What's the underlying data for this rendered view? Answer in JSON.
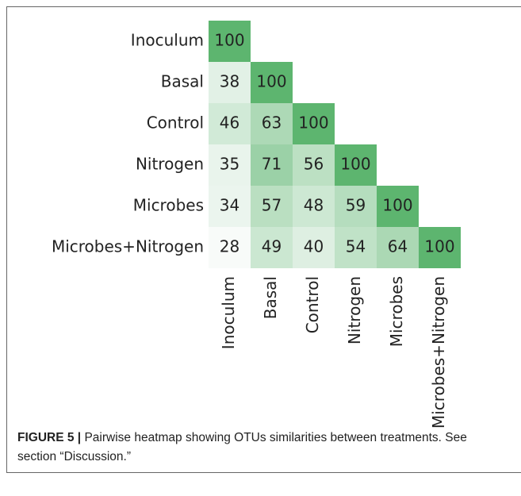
{
  "chart_data": {
    "type": "heatmap",
    "rows": [
      "Inoculum",
      "Basal",
      "Control",
      "Nitrogen",
      "Microbes",
      "Microbes+Nitrogen"
    ],
    "columns": [
      "Inoculum",
      "Basal",
      "Control",
      "Nitrogen",
      "Microbes",
      "Microbes+Nitrogen"
    ],
    "values": [
      [
        100,
        null,
        null,
        null,
        null,
        null
      ],
      [
        38,
        100,
        null,
        null,
        null,
        null
      ],
      [
        46,
        63,
        100,
        null,
        null,
        null
      ],
      [
        35,
        71,
        56,
        100,
        null,
        null
      ],
      [
        34,
        57,
        48,
        59,
        100,
        null
      ],
      [
        28,
        49,
        40,
        54,
        64,
        100
      ]
    ],
    "color_low": "#f8fbf9",
    "color_high": "#5db56f"
  },
  "caption": {
    "label": "FIGURE 5 |",
    "text": "Pairwise heatmap showing OTUs similarities between treatments. See section “Discussion.”"
  }
}
